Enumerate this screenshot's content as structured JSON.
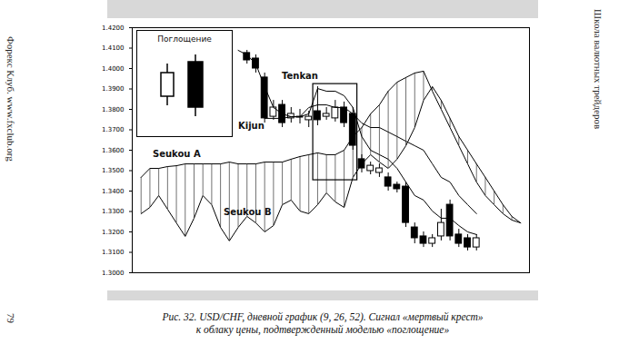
{
  "page": {
    "left_margin": "Форекс Клуб. www.fxclub.org",
    "page_number": "79",
    "right_margin": "Школа валютных трейдеров"
  },
  "chart_data": {
    "type": "candlestick",
    "caption": [
      "Рис. 32. USD/CHF, дневной график (9, 26, 52). Сигнал «мертвый крест»",
      "к облаку цены, подтвержденный моделью «поглощение»"
    ],
    "inset": {
      "title": "Поглощение"
    },
    "tick_labels": "y",
    "xlim": [
      -1,
      44
    ],
    "ylim": [
      1.3,
      1.42
    ],
    "yticks": [
      {
        "value": 1.3,
        "label": "1.3000"
      },
      {
        "value": 1.31,
        "label": "1.3100"
      },
      {
        "value": 1.32,
        "label": "1.3200"
      },
      {
        "value": 1.33,
        "label": "1.3300"
      },
      {
        "value": 1.34,
        "label": "1.3400"
      },
      {
        "value": 1.35,
        "label": "1.3500"
      },
      {
        "value": 1.36,
        "label": "1.3600"
      },
      {
        "value": 1.37,
        "label": "1.3700"
      },
      {
        "value": 1.38,
        "label": "1.3800"
      },
      {
        "value": 1.39,
        "label": "1.3900"
      },
      {
        "value": 1.4,
        "label": "1.4000"
      },
      {
        "value": 1.41,
        "label": "1.4100"
      },
      {
        "value": 1.42,
        "label": "1.4200"
      }
    ],
    "x": [
      0,
      1,
      2,
      3,
      4,
      5,
      6,
      7,
      8,
      9,
      10,
      11,
      12,
      13,
      14,
      15,
      16,
      17,
      18,
      19,
      20,
      21,
      22,
      23,
      24,
      25,
      26,
      27,
      28,
      29,
      30,
      31,
      32,
      33,
      34,
      35,
      36,
      37,
      38,
      39,
      40,
      41,
      42,
      43
    ],
    "open": [
      null,
      null,
      null,
      null,
      null,
      null,
      null,
      null,
      null,
      null,
      null,
      null,
      1.4076,
      1.4049,
      1.3956,
      1.3764,
      1.3822,
      1.3756,
      1.376,
      1.3747,
      1.3791,
      1.3764,
      1.3756,
      1.3809,
      1.3778,
      1.3556,
      1.3498,
      1.3489,
      1.3467,
      1.3431,
      1.3422,
      1.3222,
      1.3178,
      1.3142,
      1.3178,
      1.3333,
      1.3187,
      1.3169,
      1.3124,
      null,
      null,
      null,
      null,
      null
    ],
    "high": [
      null,
      null,
      null,
      null,
      null,
      null,
      null,
      null,
      null,
      null,
      null,
      null,
      1.4089,
      1.4067,
      1.3978,
      1.3844,
      1.3844,
      1.3809,
      1.38,
      1.3791,
      1.3911,
      1.3809,
      1.3844,
      1.3836,
      1.3809,
      1.3578,
      1.3542,
      1.3533,
      1.3489,
      1.3444,
      1.3444,
      1.3244,
      1.32,
      1.3187,
      1.3311,
      1.3356,
      1.3213,
      1.3187,
      1.3187,
      null,
      null,
      null,
      null,
      null
    ],
    "low": [
      null,
      null,
      null,
      null,
      null,
      null,
      null,
      null,
      null,
      null,
      null,
      null,
      1.4022,
      1.3978,
      1.3733,
      1.3747,
      1.3711,
      1.3733,
      1.3729,
      1.3711,
      1.372,
      1.3747,
      1.3738,
      1.3711,
      1.36,
      1.3489,
      1.348,
      1.3467,
      1.34,
      1.3391,
      1.3222,
      1.3142,
      1.3124,
      1.3124,
      1.3156,
      1.3156,
      1.3124,
      1.3107,
      1.3107,
      null,
      null,
      null,
      null,
      null
    ],
    "close": [
      null,
      null,
      null,
      null,
      null,
      null,
      null,
      null,
      null,
      null,
      null,
      null,
      1.404,
      1.4,
      1.3756,
      1.3809,
      1.3733,
      1.3778,
      1.3764,
      1.3764,
      1.3747,
      1.3778,
      1.3809,
      1.3733,
      1.3622,
      1.3511,
      1.3524,
      1.3511,
      1.3422,
      1.3409,
      1.3244,
      1.3169,
      1.3142,
      1.3169,
      1.3244,
      1.3178,
      1.3142,
      1.3124,
      1.3169,
      null,
      null,
      null,
      null,
      null
    ],
    "series": [
      {
        "name": "Tenkan",
        "color": "#000000",
        "values": [
          null,
          null,
          null,
          null,
          null,
          null,
          null,
          null,
          null,
          null,
          null,
          1.4089,
          1.4067,
          1.4022,
          1.3911,
          1.3809,
          1.3778,
          1.3764,
          1.3764,
          1.3778,
          1.3902,
          1.3889,
          1.3889,
          1.3867,
          1.3809,
          1.3667,
          1.36,
          1.3578,
          1.3556,
          1.3511,
          1.3444,
          1.3378,
          1.3356,
          1.3302,
          1.3267,
          1.3267,
          1.3231,
          1.32,
          1.3187,
          null,
          null,
          null,
          null,
          null
        ]
      },
      {
        "name": "Kijun",
        "color": "#000000",
        "values": [
          null,
          null,
          null,
          null,
          null,
          null,
          null,
          null,
          null,
          null,
          null,
          null,
          null,
          null,
          1.3756,
          1.3756,
          1.3756,
          1.3764,
          1.3764,
          1.3809,
          1.3822,
          1.3822,
          1.3809,
          1.3809,
          1.3778,
          1.3733,
          1.3711,
          1.3711,
          1.3689,
          1.3667,
          1.3644,
          1.3622,
          1.36,
          1.3533,
          1.3467,
          1.3444,
          1.3378,
          1.3333,
          1.3289,
          null,
          null,
          null,
          null,
          null
        ]
      },
      {
        "name": "Seukou A",
        "color": "#000000",
        "values": [
          1.3467,
          1.3511,
          1.3511,
          1.352,
          1.3524,
          1.3533,
          1.3533,
          1.3533,
          1.3533,
          1.3533,
          1.3542,
          1.3533,
          1.3533,
          1.3533,
          1.3542,
          1.3542,
          1.3542,
          1.3556,
          1.3569,
          1.3578,
          1.3587,
          1.3578,
          1.3578,
          1.36,
          1.3667,
          1.3711,
          1.3778,
          1.3822,
          1.3889,
          1.3933,
          1.3956,
          1.3978,
          1.3987,
          1.3889,
          1.38,
          1.3711,
          1.3622,
          1.3533,
          1.3444,
          1.3378,
          1.3333,
          1.3289,
          1.3258,
          1.3244
        ]
      },
      {
        "name": "Seukou B",
        "color": "#000000",
        "values": [
          1.3289,
          1.332,
          1.3378,
          1.3311,
          1.3244,
          1.3178,
          1.3267,
          1.3378,
          1.3333,
          1.3222,
          1.3156,
          1.3222,
          1.3276,
          1.3244,
          1.32,
          1.3231,
          1.3333,
          1.3356,
          1.3302,
          1.3289,
          1.3333,
          1.3391,
          1.3347,
          1.332,
          1.3467,
          1.3533,
          1.3578,
          1.3542,
          1.3511,
          1.3556,
          1.3622,
          1.3711,
          1.3844,
          1.3911,
          1.3844,
          1.3756,
          1.3667,
          1.36,
          1.3533,
          1.3467,
          1.34,
          1.3333,
          1.3276,
          1.3244
        ]
      }
    ],
    "highlight": {
      "x": [
        19.5,
        24.5
      ],
      "y": [
        1.3453,
        1.3924
      ]
    }
  }
}
